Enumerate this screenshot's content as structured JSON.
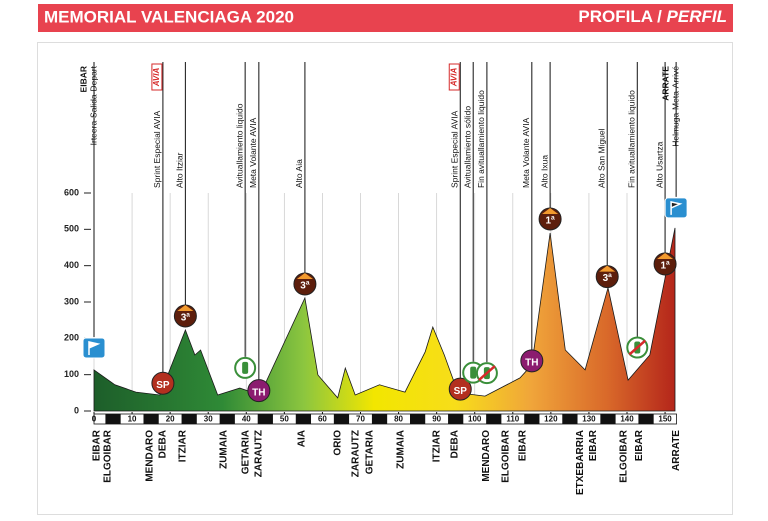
{
  "chart_data": {
    "type": "area",
    "title": "MEMORIAL VALENCIAGA 2020",
    "subtitle": "PROFILA /",
    "subtitle_italic": "PERFIL",
    "x": [
      0,
      5.5,
      11,
      17.3,
      24,
      26.5,
      28,
      32.5,
      38.3,
      43.6,
      55.4,
      58.8,
      64,
      66,
      68.6,
      75,
      81.7,
      87,
      89,
      92,
      95.6,
      102.7,
      111.9,
      115,
      119.8,
      123.8,
      129,
      135,
      140.3,
      146,
      152.6
    ],
    "values": [
      113,
      72,
      52,
      44,
      223,
      154,
      168,
      44,
      63,
      44,
      311,
      99,
      36,
      118,
      44,
      72,
      52,
      163,
      231,
      154,
      50,
      41,
      91,
      127,
      490,
      168,
      113,
      339,
      85,
      154,
      504
    ],
    "xlim": [
      0,
      153
    ],
    "xticks": [
      0,
      10,
      20,
      30,
      40,
      50,
      60,
      70,
      80,
      90,
      100,
      110,
      120,
      130,
      140,
      150
    ],
    "ylim": [
      0,
      600
    ],
    "yticks": [
      0,
      100,
      200,
      300,
      400,
      500,
      600
    ],
    "grid": true,
    "annotations": [
      {
        "x": 0,
        "lines": [
          "EIBAR",
          "Irteera-Salida-Depart"
        ],
        "icon": "start"
      },
      {
        "x": 18.1,
        "lines": [
          "Sprint Especial AVIA"
        ],
        "logo": "AVIA",
        "icon": "sprint",
        "badge": "SP"
      },
      {
        "x": 24,
        "lines": [
          "Alto Itziar"
        ],
        "icon": "climb",
        "badge": "3ª"
      },
      {
        "x": 39.7,
        "lines": [
          "Avituallamiento liquido"
        ],
        "icon": "feed"
      },
      {
        "x": 43.3,
        "lines": [
          "Meta Volante AVIA"
        ],
        "icon": "intermediate",
        "badge": "TH"
      },
      {
        "x": 55.4,
        "lines": [
          "Alto Aia"
        ],
        "icon": "climb",
        "badge": "3ª"
      },
      {
        "x": 96.2,
        "lines": [
          "Sprint Especial AVIA"
        ],
        "logo": "AVIA",
        "icon": "sprint",
        "badge": "SP"
      },
      {
        "x": 99.6,
        "lines": [
          "Avituallamiento sólido"
        ],
        "icon": "feed"
      },
      {
        "x": 103.2,
        "lines": [
          "Fin avituallamiento liquido"
        ],
        "icon": "feed-end"
      },
      {
        "x": 115,
        "lines": [
          "Meta Volante AVIA"
        ],
        "icon": "intermediate",
        "badge": "TH"
      },
      {
        "x": 119.8,
        "lines": [
          "Alto Ixua"
        ],
        "icon": "climb",
        "badge": "1ª"
      },
      {
        "x": 134.8,
        "lines": [
          "Alto San Miguel"
        ],
        "icon": "climb",
        "badge": "3ª"
      },
      {
        "x": 142.7,
        "lines": [
          "Fin avituallamiento liquido"
        ],
        "icon": "feed-end"
      },
      {
        "x": 150,
        "lines": [
          "Alto Usartza"
        ],
        "icon": "climb",
        "badge": "1ª"
      },
      {
        "x": 152.9,
        "lines": [
          "ARRATE",
          "Helmuga-Meta-Arrivé"
        ],
        "icon": "finish"
      }
    ],
    "towns": [
      {
        "x": 0.8,
        "label": "EIBAR"
      },
      {
        "x": 3.7,
        "label": "ELGOIBAR"
      },
      {
        "x": 14.7,
        "label": "MENDARO"
      },
      {
        "x": 18.1,
        "label": "DEBA"
      },
      {
        "x": 23.4,
        "label": "ITZIAR"
      },
      {
        "x": 34.1,
        "label": "ZUMAIA"
      },
      {
        "x": 39.9,
        "label": "GETARIA"
      },
      {
        "x": 43.3,
        "label": "ZARAUTZ"
      },
      {
        "x": 54.6,
        "label": "AIA"
      },
      {
        "x": 64.1,
        "label": "ORIO"
      },
      {
        "x": 68.8,
        "label": "ZARAUTZ"
      },
      {
        "x": 72.5,
        "label": "GETARIA"
      },
      {
        "x": 80.6,
        "label": "ZUMAIA"
      },
      {
        "x": 90.1,
        "label": "ITZIAR"
      },
      {
        "x": 94.8,
        "label": "DEBA"
      },
      {
        "x": 103,
        "label": "MENDARO"
      },
      {
        "x": 108.2,
        "label": "ELGOIBAR"
      },
      {
        "x": 112.7,
        "label": "EIBAR"
      },
      {
        "x": 127.7,
        "label": "ETXEBARRIA"
      },
      {
        "x": 131.1,
        "label": "EIBAR"
      },
      {
        "x": 139.2,
        "label": "ELGOIBAR"
      },
      {
        "x": 143.2,
        "label": "EIBAR"
      },
      {
        "x": 152.9,
        "label": "ARRATE"
      }
    ]
  }
}
